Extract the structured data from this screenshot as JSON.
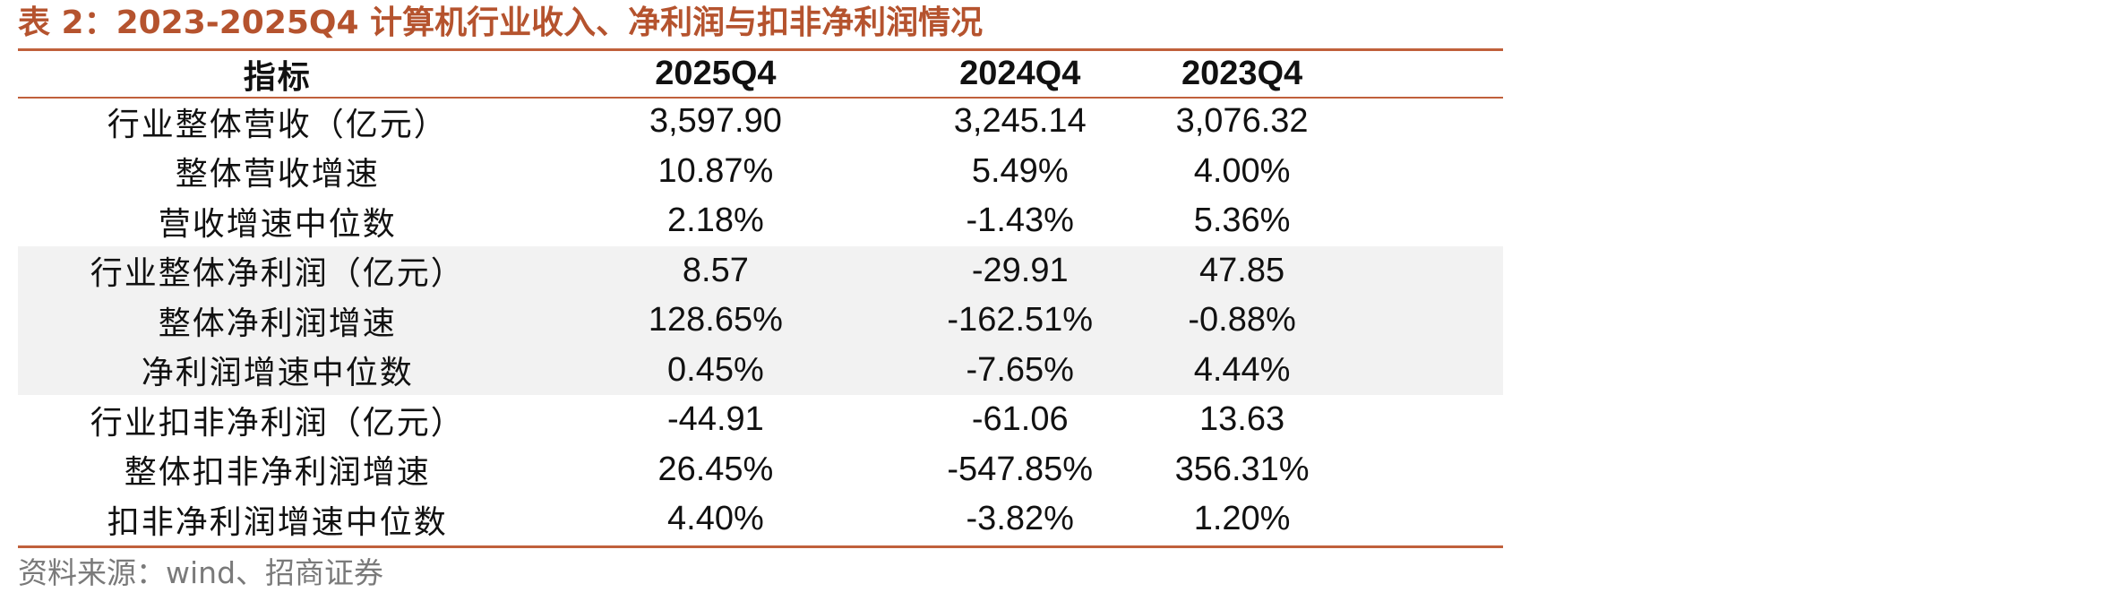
{
  "title": "表 2：2023-2025Q4 计算机行业收入、净利润与扣非净利润情况",
  "colors": {
    "accent": "#b5532e",
    "rule": "#c0603b",
    "shade": "#f2f2f2",
    "source_text": "#7a7a7a"
  },
  "table": {
    "headers": [
      "指标",
      "2025Q4",
      "2024Q4",
      "2023Q4"
    ],
    "rows": [
      {
        "label": "行业整体营收（亿元）",
        "values": [
          "3,597.90",
          "3,245.14",
          "3,076.32"
        ],
        "shaded": false
      },
      {
        "label": "整体营收增速",
        "values": [
          "10.87%",
          "5.49%",
          "4.00%"
        ],
        "shaded": false
      },
      {
        "label": "营收增速中位数",
        "values": [
          "2.18%",
          "-1.43%",
          "5.36%"
        ],
        "shaded": false
      },
      {
        "label": "行业整体净利润（亿元）",
        "values": [
          "8.57",
          "-29.91",
          "47.85"
        ],
        "shaded": true
      },
      {
        "label": "整体净利润增速",
        "values": [
          "128.65%",
          "-162.51%",
          "-0.88%"
        ],
        "shaded": true
      },
      {
        "label": "净利润增速中位数",
        "values": [
          "0.45%",
          "-7.65%",
          "4.44%"
        ],
        "shaded": true
      },
      {
        "label": "行业扣非净利润（亿元）",
        "values": [
          "-44.91",
          "-61.06",
          "13.63"
        ],
        "shaded": false
      },
      {
        "label": "整体扣非净利润增速",
        "values": [
          "26.45%",
          "-547.85%",
          "356.31%"
        ],
        "shaded": false
      },
      {
        "label": "扣非净利润增速中位数",
        "values": [
          "4.40%",
          "-3.82%",
          "1.20%"
        ],
        "shaded": false
      }
    ]
  },
  "source": "资料来源：wind、招商证券"
}
